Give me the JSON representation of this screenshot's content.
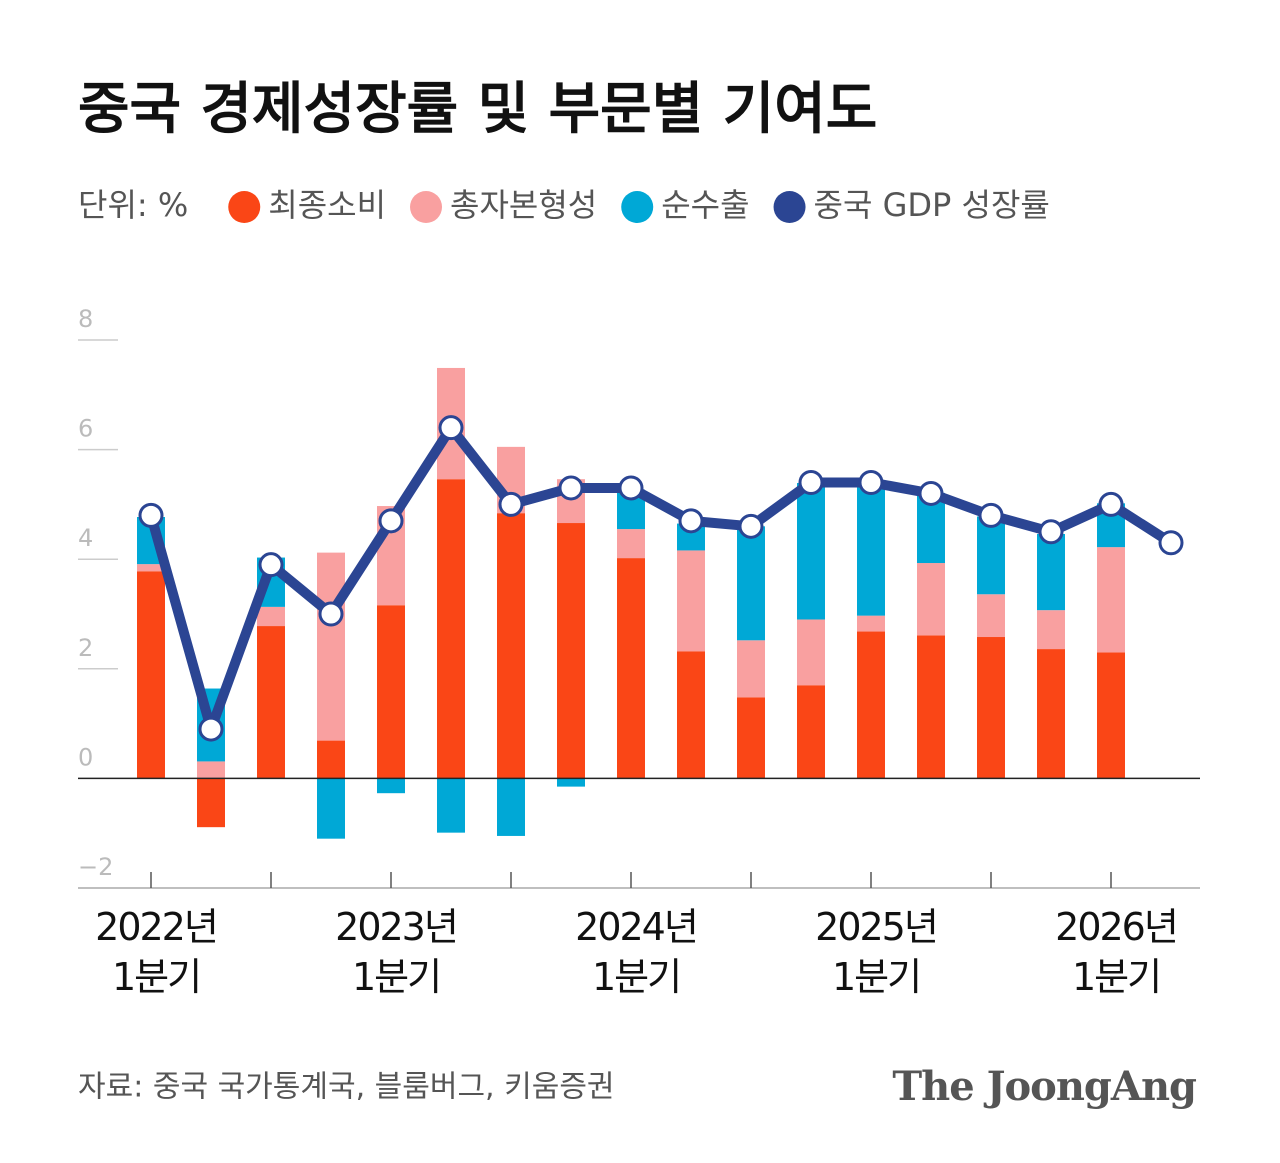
{
  "chart_data": {
    "type": "bar",
    "stacked": true,
    "title": "중국 경제성장률 및 부문별 기여도",
    "unit_label": "단위: %",
    "source": "자료: 중국 국가통계국, 블룸버그, 키움증권",
    "brand": "The JoongAng",
    "categories": [
      "2022년\n1분기",
      null,
      null,
      null,
      "2023년\n1분기",
      null,
      null,
      null,
      "2024년\n1분기",
      null,
      null,
      null,
      "2025년\n1분기",
      null,
      null,
      null,
      "2026년\n1분기",
      null
    ],
    "series": [
      {
        "name": "최종소비",
        "color": "#fa4616",
        "type": "bar",
        "values": [
          3.78,
          -0.89,
          2.78,
          0.69,
          3.16,
          5.46,
          4.84,
          4.66,
          4.02,
          2.32,
          1.48,
          1.7,
          2.68,
          2.61,
          2.58,
          2.36,
          2.3,
          null
        ]
      },
      {
        "name": "총자본형성",
        "color": "#f9a0a0",
        "type": "bar",
        "values": [
          0.13,
          0.31,
          0.35,
          3.43,
          1.81,
          2.03,
          1.21,
          0.8,
          0.53,
          1.84,
          1.04,
          1.2,
          0.29,
          1.32,
          0.78,
          0.71,
          1.92,
          null
        ]
      },
      {
        "name": "순수출",
        "color": "#00a8d6",
        "type": "bar",
        "values": [
          0.86,
          1.33,
          0.9,
          -1.1,
          -0.27,
          -0.99,
          -1.05,
          -0.15,
          0.72,
          0.49,
          2.08,
          2.49,
          2.37,
          1.28,
          1.42,
          1.39,
          0.8,
          null
        ]
      },
      {
        "name": "중국 GDP 성장률",
        "color": "#2b4593",
        "type": "line",
        "values": [
          4.8,
          0.9,
          3.9,
          3.0,
          4.7,
          6.4,
          5.0,
          5.3,
          5.3,
          4.7,
          4.6,
          5.4,
          5.4,
          5.2,
          4.8,
          4.5,
          5.0,
          4.3
        ]
      }
    ],
    "ylim": [
      -2,
      8
    ],
    "yticks": [
      {
        "value": -2,
        "label": "−2"
      },
      0,
      2,
      4,
      6,
      8
    ]
  }
}
